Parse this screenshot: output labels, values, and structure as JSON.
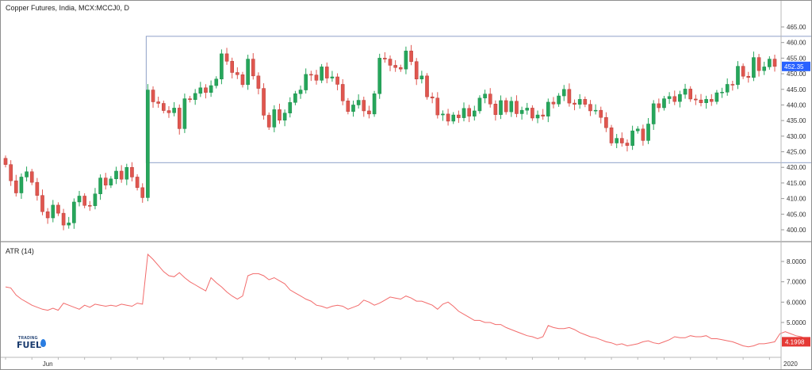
{
  "title": "Copper Futures, India, MCX:MCCJ0, D",
  "atr_label": "ATR (14)",
  "logo": {
    "line1": "TRADING",
    "line2": "FUEL"
  },
  "colors": {
    "up": "#26a65b",
    "down": "#e0564f",
    "atr": "#f26b6b",
    "price_badge": "#2962ff",
    "atr_badge": "#e53935",
    "box": "#8fa1c8"
  },
  "chart_data": [
    {
      "type": "candlestick",
      "title": "Copper Futures, India, MCX:MCCJ0, D",
      "ylim": [
        395,
        467
      ],
      "y_ticks": [
        400,
        405,
        410,
        415,
        420,
        425,
        430,
        435,
        440,
        445,
        450,
        455,
        460,
        465
      ],
      "y_tick_labels": [
        "400.00",
        "405.00",
        "410.00",
        "415.00",
        "420.00",
        "425.00",
        "430.00",
        "435.00",
        "440.00",
        "445.00",
        "450.00",
        "455.00",
        "460.00",
        "465.00"
      ],
      "x_labels": [
        {
          "label": "Jun",
          "index": 8
        },
        {
          "label": "2020",
          "index": 149
        }
      ],
      "last_price_label": "452.35",
      "last_price": 452.35,
      "highlight_box": {
        "start_index": 27,
        "end_index": 157,
        "low": 421.5,
        "high": 462
      },
      "series": [
        {
          "name": "",
          "values": [
            420.9,
            415.7,
            411.8,
            416.9,
            418.6,
            415.2,
            411.0,
            405.8,
            403.8,
            407.9,
            405.3,
            401.5,
            402.2,
            408.9,
            410.8,
            407.8,
            407.7,
            411.5,
            416.6,
            414.3,
            416.3,
            418.8,
            416.2,
            420.0,
            416.9,
            413.5,
            410.3,
            444.8,
            441.0,
            440.5,
            438.2,
            437.5,
            439.0,
            432.4,
            442.0,
            441.7,
            443.7,
            445.5,
            444.0,
            446.2,
            448.3,
            456.4,
            454.0,
            450.4,
            449.7,
            446.5,
            454.7,
            449.3,
            445.3,
            436.7,
            432.9,
            438.5,
            435.1,
            437.4,
            440.8,
            443.6,
            444.8,
            449.8,
            449.6,
            447.9,
            452.2,
            448.6,
            449.0,
            446.6,
            441.3,
            437.9,
            440.0,
            441.5,
            438.1,
            437.1,
            443.6,
            455.0,
            454.7,
            452.7,
            452.0,
            451.5,
            457.3,
            453.9,
            448.3,
            449.3,
            442.6,
            442.2,
            436.8,
            437.1,
            434.8,
            436.8,
            435.9,
            438.9,
            436.4,
            438.1,
            442.2,
            443.5,
            440.3,
            436.9,
            441.4,
            437.8,
            441.2,
            437.2,
            438.3,
            439.0,
            435.8,
            436.8,
            436.4,
            440.9,
            440.3,
            442.9,
            445.0,
            440.6,
            440.2,
            441.8,
            440.2,
            438.1,
            438.3,
            436.0,
            432.7,
            427.8,
            429.3,
            427.8,
            427.0,
            431.7,
            432.3,
            428.6,
            433.9,
            440.4,
            439.1,
            442.0,
            442.7,
            441.1,
            443.4,
            445.1,
            441.9,
            441.6,
            440.7,
            441.8,
            441.1,
            443.9,
            444.1,
            446.6,
            446.5,
            452.4,
            449.2,
            448.8,
            455.2,
            451.0,
            452.2,
            454.7,
            452.35
          ]
        },
        {
          "name": "ATR (14)",
          "values": [
            6.75,
            6.7,
            6.35,
            6.15,
            6.0,
            5.85,
            5.75,
            5.65,
            5.6,
            5.7,
            5.6,
            5.95,
            5.85,
            5.75,
            5.65,
            5.85,
            5.75,
            5.9,
            5.85,
            5.8,
            5.85,
            5.8,
            5.9,
            5.85,
            5.8,
            5.95,
            5.9,
            8.35,
            8.1,
            7.8,
            7.5,
            7.3,
            7.25,
            7.45,
            7.2,
            7.0,
            6.85,
            6.7,
            6.55,
            7.2,
            6.95,
            6.75,
            6.5,
            6.3,
            6.15,
            6.3,
            7.3,
            7.4,
            7.4,
            7.3,
            7.1,
            7.2,
            7.05,
            6.9,
            6.6,
            6.45,
            6.3,
            6.15,
            6.05,
            5.85,
            5.8,
            5.7,
            5.8,
            5.85,
            5.8,
            5.65,
            5.75,
            5.85,
            6.1,
            6.0,
            5.85,
            5.95,
            6.1,
            6.25,
            6.2,
            6.15,
            6.3,
            6.2,
            6.05,
            6.05,
            5.95,
            5.85,
            5.65,
            5.9,
            6.0,
            5.8,
            5.55,
            5.4,
            5.25,
            5.1,
            5.1,
            5.0,
            5.0,
            4.9,
            4.9,
            4.75,
            4.65,
            4.55,
            4.45,
            4.35,
            4.3,
            4.2,
            4.3,
            4.85,
            4.75,
            4.7,
            4.7,
            4.75,
            4.65,
            4.5,
            4.4,
            4.3,
            4.25,
            4.15,
            4.05,
            4.0,
            3.9,
            3.95,
            3.85,
            3.9,
            3.95,
            4.05,
            4.1,
            4.0,
            3.95,
            4.05,
            4.15,
            4.3,
            4.25,
            4.25,
            4.35,
            4.3,
            4.3,
            4.35,
            4.2,
            4.2,
            4.15,
            4.1,
            4.05,
            3.95,
            3.85,
            3.8,
            3.85,
            3.95,
            3.95,
            4.0,
            4.05,
            4.45,
            4.55,
            4.45,
            4.35,
            4.3,
            4.2
          ]
        }
      ],
      "atr_ylim": [
        3.7,
        8.6
      ],
      "atr_y_ticks": [
        5,
        6,
        7,
        8
      ],
      "atr_y_tick_labels": [
        "5.0000",
        "6.0000",
        "7.0000",
        "8.0000"
      ],
      "atr_last_label": "4.1998"
    }
  ]
}
